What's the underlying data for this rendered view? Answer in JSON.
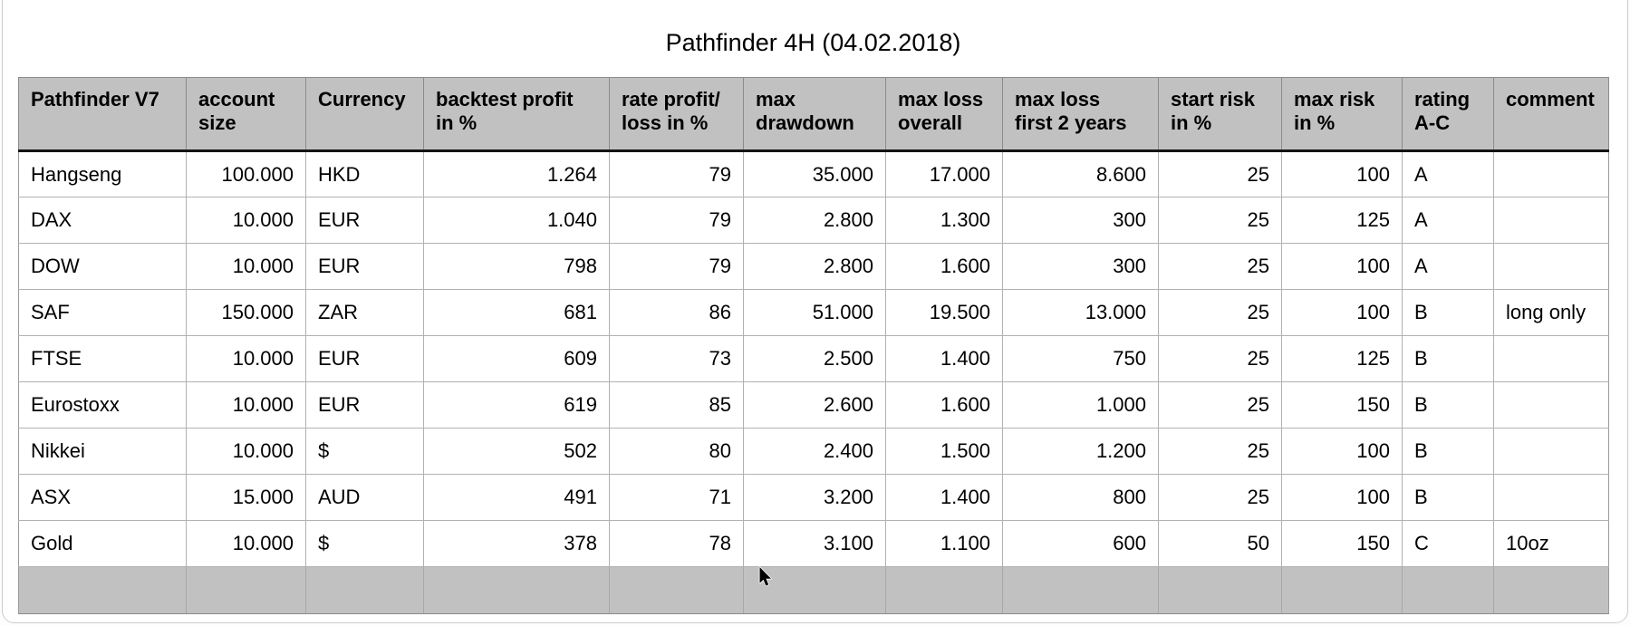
{
  "page": {
    "title": "Pathfinder 4H (04.02.2018)"
  },
  "table": {
    "headers": [
      "Pathfinder V7",
      "account\nsize",
      "Currency",
      "backtest profit\nin %",
      "rate profit/\nloss in %",
      "max\ndrawdown",
      "max loss\noverall",
      "max loss\nfirst 2 years",
      "start risk\nin %",
      "max risk\nin %",
      "rating\nA-C",
      "comment"
    ],
    "rows": [
      [
        "Hangseng",
        "100.000",
        "HKD",
        "1.264",
        "79",
        "35.000",
        "17.000",
        "8.600",
        "25",
        "100",
        "A",
        ""
      ],
      [
        "DAX",
        "10.000",
        "EUR",
        "1.040",
        "79",
        "2.800",
        "1.300",
        "300",
        "25",
        "125",
        "A",
        ""
      ],
      [
        "DOW",
        "10.000",
        "EUR",
        "798",
        "79",
        "2.800",
        "1.600",
        "300",
        "25",
        "100",
        "A",
        ""
      ],
      [
        "SAF",
        "150.000",
        "ZAR",
        "681",
        "86",
        "51.000",
        "19.500",
        "13.000",
        "25",
        "100",
        "B",
        "long only"
      ],
      [
        "FTSE",
        "10.000",
        "EUR",
        "609",
        "73",
        "2.500",
        "1.400",
        "750",
        "25",
        "125",
        "B",
        ""
      ],
      [
        "Eurostoxx",
        "10.000",
        "EUR",
        "619",
        "85",
        "2.600",
        "1.600",
        "1.000",
        "25",
        "150",
        "B",
        ""
      ],
      [
        "Nikkei",
        "10.000",
        "$",
        "502",
        "80",
        "2.400",
        "1.500",
        "1.200",
        "25",
        "100",
        "B",
        ""
      ],
      [
        "ASX",
        "15.000",
        "AUD",
        "491",
        "71",
        "3.200",
        "1.400",
        "800",
        "25",
        "100",
        "B",
        ""
      ],
      [
        "Gold",
        "10.000",
        "$",
        "378",
        "78",
        "3.100",
        "1.100",
        "600",
        "50",
        "150",
        "C",
        "10oz"
      ]
    ],
    "footer_row": [
      "",
      "",
      "",
      "",
      "",
      "",
      "",
      "",
      "",
      "",
      "",
      ""
    ]
  },
  "colors": {
    "header_bg": "#c1c1c1",
    "footer_bg": "#c1c1c1",
    "grid_line": "#b2b2b2",
    "header_grid_line": "#8c8c8c",
    "header_underline": "#141414",
    "window_border": "#cccccc",
    "text": "#000000"
  }
}
